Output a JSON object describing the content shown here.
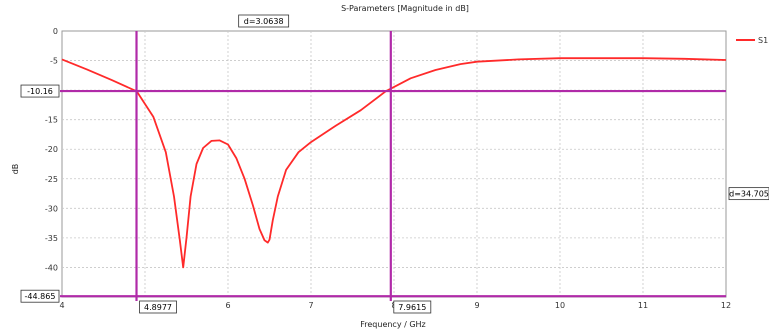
{
  "chart_data": {
    "type": "line",
    "title": "S-Parameters [Magnitude in dB]",
    "xlabel": "Frequency / GHz",
    "ylabel": "dB",
    "xlim": [
      4,
      12
    ],
    "ylim": [
      -45,
      0
    ],
    "xticks": [
      "4",
      "5",
      "6",
      "7",
      "8",
      "9",
      "10",
      "11",
      "12"
    ],
    "yticks": [
      "0",
      "-5",
      "-10",
      "-15",
      "-20",
      "-25",
      "-30",
      "-35",
      "-40"
    ],
    "grid": true,
    "legend_position": "top-right",
    "series": [
      {
        "name": "S1",
        "color": "#ff2a2a",
        "x": [
          4.0,
          4.3,
          4.6,
          4.9,
          5.1,
          5.25,
          5.35,
          5.42,
          5.46,
          5.5,
          5.55,
          5.62,
          5.7,
          5.8,
          5.9,
          6.0,
          6.1,
          6.2,
          6.3,
          6.38,
          6.44,
          6.48,
          6.5,
          6.54,
          6.6,
          6.7,
          6.85,
          7.0,
          7.3,
          7.6,
          7.9,
          8.2,
          8.5,
          8.8,
          9.0,
          9.5,
          10.0,
          10.5,
          11.0,
          11.5,
          12.0
        ],
        "y": [
          -4.8,
          -6.5,
          -8.3,
          -10.2,
          -14.5,
          -20.5,
          -28.0,
          -35.5,
          -40.0,
          -35.0,
          -28.0,
          -22.5,
          -19.8,
          -18.6,
          -18.5,
          -19.2,
          -21.5,
          -25.0,
          -29.5,
          -33.5,
          -35.4,
          -35.8,
          -35.3,
          -32.0,
          -28.0,
          -23.5,
          -20.5,
          -18.8,
          -16.0,
          -13.4,
          -10.2,
          -8.0,
          -6.6,
          -5.6,
          -5.2,
          -4.8,
          -4.6,
          -4.6,
          -4.6,
          -4.7,
          -4.9
        ]
      }
    ],
    "markers": {
      "x_lines": [
        "4.8977",
        "7.9615"
      ],
      "y_lines": [
        "-10.16",
        "-44.865"
      ],
      "delta_x": "d=3.0638",
      "delta_y": "d=34.705"
    }
  }
}
